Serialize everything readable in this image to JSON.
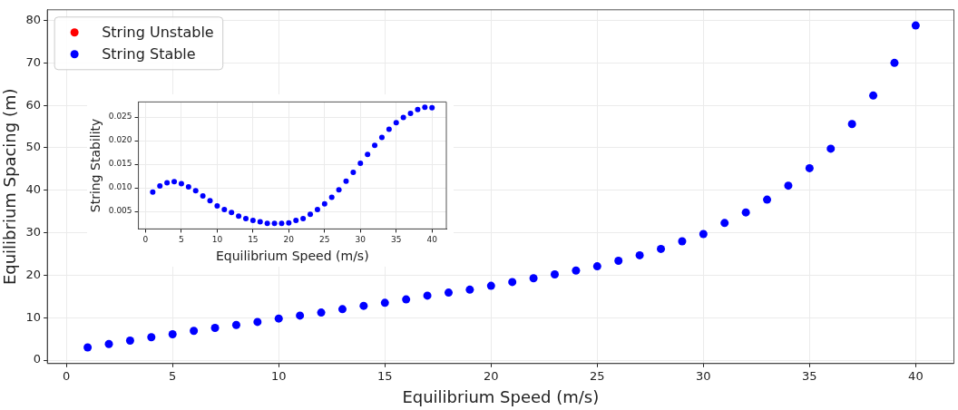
{
  "chart_data": [
    {
      "type": "scatter",
      "xlabel": "Equilibrium Speed (m/s)",
      "ylabel": "Equilibrium Spacing (m)",
      "xlim": [
        -0.9,
        41.8
      ],
      "ylim": [
        -0.8,
        82.5
      ],
      "xticks": [
        0,
        5,
        10,
        15,
        20,
        25,
        30,
        35,
        40
      ],
      "yticks": [
        0,
        10,
        20,
        30,
        40,
        50,
        60,
        70,
        80
      ],
      "grid": true,
      "legend": "top left",
      "marker": "circle",
      "x": [
        1,
        2,
        3,
        4,
        5,
        6,
        7,
        8,
        9,
        10,
        11,
        12,
        13,
        14,
        15,
        16,
        17,
        18,
        19,
        20,
        21,
        22,
        23,
        24,
        25,
        26,
        27,
        28,
        29,
        30,
        31,
        32,
        33,
        34,
        35,
        36,
        37,
        38,
        39,
        40
      ],
      "series": [
        {
          "name": "String Unstable",
          "color": "#ff0000",
          "values": [
            null,
            null,
            null,
            null,
            null,
            null,
            null,
            null,
            null,
            null,
            null,
            null,
            null,
            null,
            null,
            null,
            null,
            null,
            null,
            null,
            null,
            null,
            null,
            null,
            null,
            null,
            null,
            null,
            null,
            null,
            null,
            null,
            null,
            null,
            null,
            null,
            null,
            null,
            null,
            null
          ]
        },
        {
          "name": "String Stable",
          "color": "#0000ff",
          "values": [
            3.0,
            3.8,
            4.6,
            5.4,
            6.1,
            6.9,
            7.6,
            8.3,
            9.0,
            9.8,
            10.5,
            11.2,
            12.0,
            12.8,
            13.5,
            14.3,
            15.2,
            15.9,
            16.6,
            17.5,
            18.4,
            19.3,
            20.2,
            21.1,
            22.1,
            23.4,
            24.7,
            26.2,
            28.0,
            29.7,
            32.3,
            34.8,
            37.8,
            41.1,
            45.2,
            49.8,
            55.6,
            62.3,
            70.0,
            78.8
          ]
        }
      ]
    },
    {
      "type": "scatter",
      "xlabel": "Equilibrium Speed (m/s)",
      "ylabel": "String Stability",
      "xlim": [
        -1,
        42
      ],
      "ylim": [
        0.0013,
        0.0282
      ],
      "xticks": [
        0,
        5,
        10,
        15,
        20,
        25,
        30,
        35,
        40
      ],
      "yticks": [
        0.005,
        {
          "value": 0.01,
          "label": "0.010"
        },
        0.015,
        {
          "value": 0.02,
          "label": "0.020"
        },
        0.025
      ],
      "grid": true,
      "marker": "circle",
      "x": [
        1,
        2,
        3,
        4,
        5,
        6,
        7,
        8,
        9,
        10,
        11,
        12,
        13,
        14,
        15,
        16,
        17,
        18,
        19,
        20,
        21,
        22,
        23,
        24,
        25,
        26,
        27,
        28,
        29,
        30,
        31,
        32,
        33,
        34,
        35,
        36,
        37,
        38,
        39,
        40
      ],
      "series": [
        {
          "color": "#0000ff",
          "values": [
            0.0091,
            0.0104,
            0.0111,
            0.0113,
            0.0109,
            0.0102,
            0.0094,
            0.0083,
            0.0073,
            0.0062,
            0.0054,
            0.0048,
            0.004,
            0.0035,
            0.0031,
            0.0028,
            0.0025,
            0.0025,
            0.0025,
            0.0026,
            0.0031,
            0.0035,
            0.0044,
            0.0054,
            0.0066,
            0.008,
            0.0096,
            0.0114,
            0.0133,
            0.0152,
            0.0171,
            0.019,
            0.0207,
            0.0224,
            0.0238,
            0.0249,
            0.0258,
            0.0266,
            0.0271,
            0.027
          ]
        }
      ]
    }
  ]
}
